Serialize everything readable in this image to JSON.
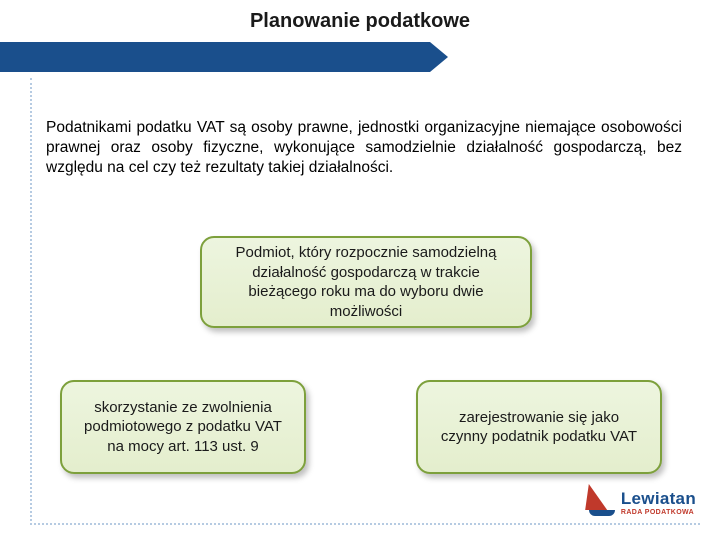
{
  "slide": {
    "title": "Planowanie podatkowe",
    "paragraph": "Podatnikami podatku VAT są osoby prawne, jednostki organizacyjne niemające osobowości prawnej oraz osoby fizyczne, wykonujące samodzielnie działalność gospodarczą, bez względu na cel czy też rezultaty takiej działalności.",
    "box_top": "Podmiot, który rozpocznie samodzielną działalność gospodarczą w trakcie bieżącego roku ma do wyboru dwie możliwości",
    "box_left": "skorzystanie ze zwolnienia podmiotowego z podatku VAT na mocy art. 113 ust. 9",
    "box_right": "zarejestrowanie się jako czynny podatnik podatku VAT",
    "logo_main": "Lewiatan",
    "logo_sub": "RADA PODATKOWA"
  },
  "colors": {
    "header_bar": "#1a4f8c",
    "box_border": "#7da03c",
    "box_fill_top": "#edf5df",
    "box_fill_bottom": "#e4eecd",
    "dotted": "#b6cbe2",
    "logo_red": "#c0392b",
    "logo_blue": "#1a4f8c",
    "background": "#ffffff"
  }
}
